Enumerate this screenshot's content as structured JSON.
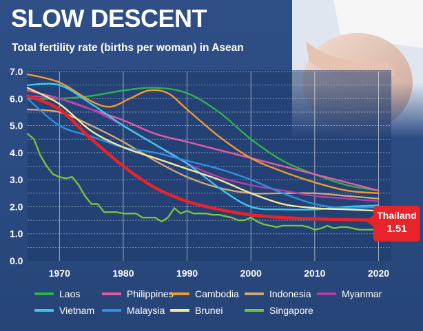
{
  "header": {
    "title": "SLOW DESCENT",
    "subtitle": "Total fertility rate (births per woman) in Asean"
  },
  "callout": {
    "name": "Thailand",
    "value": "1.51"
  },
  "colors": {
    "Laos": "#2db34a",
    "Philippines": "#e75aa8",
    "Cambodia": "#f29a2e",
    "Indonesia": "#d2a679",
    "Myanmar": "#b23fa8",
    "Vietnam": "#3fc6ef",
    "Malaysia": "#2f8fe0",
    "Brunei": "#f5eba0",
    "Singapore": "#79c23b",
    "Thailand": "#e8232a"
  },
  "chart_data": {
    "type": "line",
    "title": "SLOW DESCENT",
    "subtitle": "Total fertility rate (births per woman) in Asean",
    "xlabel": "",
    "ylabel": "",
    "xlim": [
      1965,
      2022
    ],
    "ylim": [
      0,
      7
    ],
    "x_ticks": [
      "1970",
      "1980",
      "1990",
      "2000",
      "2010",
      "2020"
    ],
    "y_ticks": [
      "0.0",
      "1.0",
      "2.0",
      "3.0",
      "4.0",
      "5.0",
      "6.0",
      "7.0"
    ],
    "grid": true,
    "legend_position": "bottom",
    "series": [
      {
        "name": "Laos",
        "x": [
          1965,
          1970,
          1975,
          1980,
          1985,
          1990,
          1995,
          2000,
          2005,
          2010,
          2015,
          2020
        ],
        "y": [
          6.0,
          6.0,
          6.1,
          6.3,
          6.4,
          6.2,
          5.5,
          4.5,
          3.7,
          3.2,
          2.8,
          2.6
        ]
      },
      {
        "name": "Philippines",
        "x": [
          1965,
          1970,
          1975,
          1980,
          1985,
          1990,
          1995,
          2000,
          2005,
          2010,
          2015,
          2020
        ],
        "y": [
          6.3,
          6.0,
          5.6,
          5.2,
          4.7,
          4.4,
          4.1,
          3.8,
          3.5,
          3.2,
          2.9,
          2.6
        ]
      },
      {
        "name": "Cambodia",
        "x": [
          1965,
          1970,
          1975,
          1978,
          1981,
          1984,
          1987,
          1990,
          1995,
          2000,
          2005,
          2010,
          2015,
          2020
        ],
        "y": [
          6.9,
          6.6,
          5.9,
          5.7,
          6.0,
          6.3,
          6.2,
          5.6,
          4.6,
          3.8,
          3.3,
          2.9,
          2.6,
          2.5
        ]
      },
      {
        "name": "Indonesia",
        "x": [
          1965,
          1970,
          1975,
          1980,
          1985,
          1990,
          1995,
          2000,
          2005,
          2010,
          2015,
          2020
        ],
        "y": [
          5.6,
          5.5,
          5.0,
          4.4,
          3.7,
          3.1,
          2.7,
          2.5,
          2.5,
          2.5,
          2.4,
          2.3
        ]
      },
      {
        "name": "Myanmar",
        "x": [
          1965,
          1970,
          1975,
          1980,
          1985,
          1990,
          1995,
          2000,
          2005,
          2010,
          2015,
          2020
        ],
        "y": [
          6.1,
          6.0,
          5.6,
          5.0,
          4.3,
          3.6,
          3.1,
          2.8,
          2.6,
          2.4,
          2.3,
          2.2
        ]
      },
      {
        "name": "Vietnam",
        "x": [
          1965,
          1970,
          1975,
          1980,
          1985,
          1990,
          1995,
          2000,
          2005,
          2010,
          2015,
          2020
        ],
        "y": [
          6.5,
          6.5,
          5.8,
          5.0,
          4.3,
          3.6,
          2.7,
          2.0,
          1.9,
          1.9,
          2.0,
          2.05
        ]
      },
      {
        "name": "Malaysia",
        "x": [
          1965,
          1970,
          1975,
          1980,
          1985,
          1990,
          1995,
          2000,
          2005,
          2010,
          2015,
          2020
        ],
        "y": [
          6.0,
          5.0,
          4.6,
          4.2,
          4.0,
          3.7,
          3.4,
          3.0,
          2.5,
          2.1,
          1.95,
          2.0
        ]
      },
      {
        "name": "Brunei",
        "x": [
          1965,
          1970,
          1975,
          1980,
          1985,
          1990,
          1995,
          2000,
          2005,
          2010,
          2015,
          2020
        ],
        "y": [
          6.4,
          5.8,
          4.8,
          4.2,
          3.8,
          3.4,
          3.0,
          2.5,
          2.1,
          1.95,
          1.9,
          1.85
        ]
      },
      {
        "name": "Singapore",
        "x": [
          1965,
          1966,
          1967,
          1968,
          1969,
          1970,
          1971,
          1972,
          1973,
          1974,
          1975,
          1976,
          1977,
          1978,
          1979,
          1980,
          1981,
          1982,
          1983,
          1984,
          1985,
          1986,
          1987,
          1988,
          1989,
          1990,
          1991,
          1992,
          1993,
          1994,
          1995,
          1996,
          1997,
          1998,
          1999,
          2000,
          2001,
          2002,
          2003,
          2004,
          2005,
          2006,
          2007,
          2008,
          2009,
          2010,
          2011,
          2012,
          2013,
          2014,
          2015,
          2016,
          2017,
          2018,
          2019,
          2020
        ],
        "y": [
          4.7,
          4.5,
          3.9,
          3.5,
          3.2,
          3.1,
          3.05,
          3.1,
          2.8,
          2.4,
          2.1,
          2.1,
          1.8,
          1.8,
          1.8,
          1.75,
          1.75,
          1.75,
          1.6,
          1.6,
          1.6,
          1.45,
          1.6,
          1.95,
          1.75,
          1.85,
          1.75,
          1.75,
          1.75,
          1.7,
          1.7,
          1.65,
          1.6,
          1.5,
          1.5,
          1.6,
          1.45,
          1.35,
          1.3,
          1.25,
          1.3,
          1.3,
          1.3,
          1.3,
          1.25,
          1.15,
          1.2,
          1.3,
          1.2,
          1.25,
          1.25,
          1.2,
          1.15,
          1.15,
          1.15,
          1.15
        ]
      },
      {
        "name": "Thailand",
        "x": [
          1965,
          1970,
          1975,
          1980,
          1985,
          1990,
          1995,
          2000,
          2005,
          2010,
          2015,
          2020
        ],
        "y": [
          6.1,
          5.6,
          4.5,
          3.5,
          2.7,
          2.2,
          1.9,
          1.7,
          1.6,
          1.55,
          1.52,
          1.51
        ]
      }
    ]
  }
}
